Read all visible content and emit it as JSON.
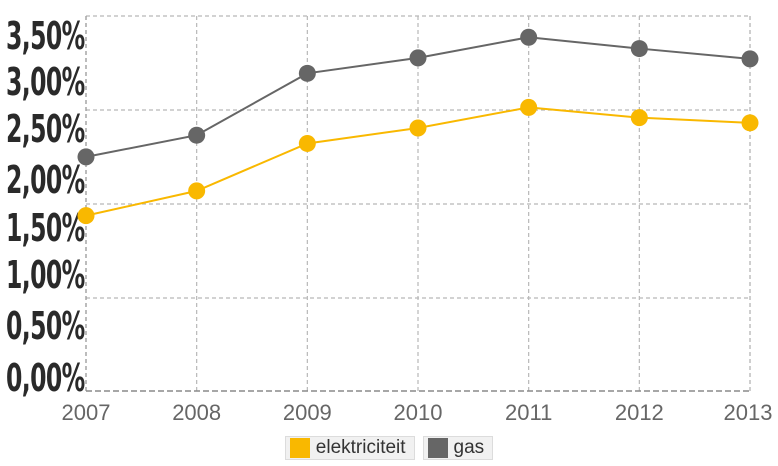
{
  "chart_data": {
    "type": "line",
    "categories": [
      "2007",
      "2008",
      "2009",
      "2010",
      "2011",
      "2012",
      "2013"
    ],
    "series": [
      {
        "name": "elektriciteit",
        "color": "#f9b800",
        "values": [
          1.7,
          1.94,
          2.4,
          2.55,
          2.75,
          2.65,
          2.6
        ]
      },
      {
        "name": "gas",
        "color": "#666666",
        "values": [
          2.27,
          2.48,
          3.08,
          3.23,
          3.43,
          3.32,
          3.22
        ]
      }
    ],
    "yticks": [
      "0,00%",
      "0,50%",
      "1,00%",
      "1,50%",
      "2,00%",
      "2,50%",
      "3,00%",
      "3,50%"
    ],
    "ylim": [
      0,
      3.5
    ],
    "grid": true,
    "legend": "bottom-center"
  }
}
